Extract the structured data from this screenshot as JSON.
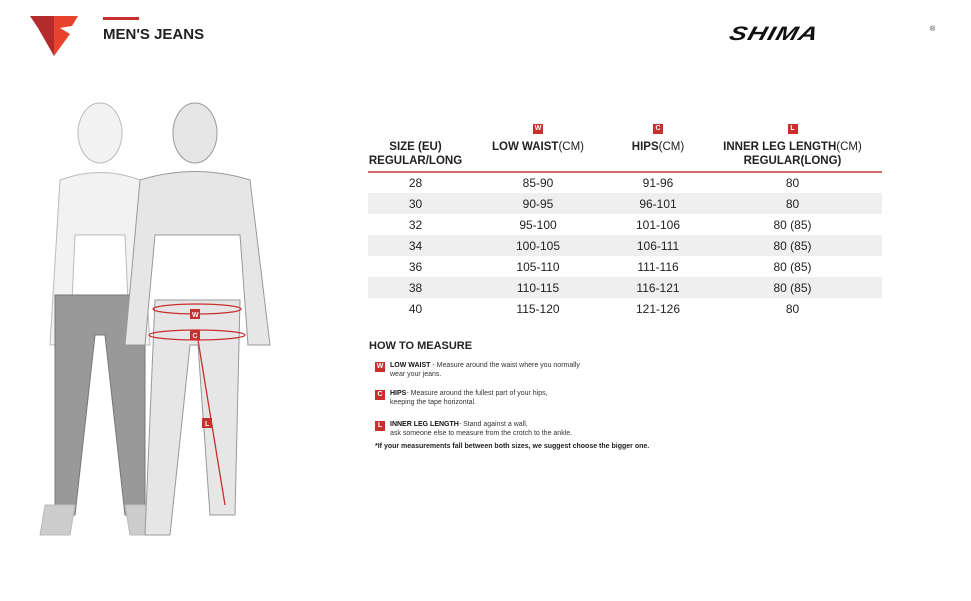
{
  "header": {
    "title": "MEN'S JEANS",
    "brand": "SHIMA",
    "registered": "®",
    "accent": "#c8302e"
  },
  "table": {
    "headers": [
      {
        "badge": "",
        "label": "SIZE (EU)",
        "label2": "REGULAR/LONG",
        "unit": ""
      },
      {
        "badge": "W",
        "label": "LOW WAIST",
        "unit": "(CM)",
        "label2": ""
      },
      {
        "badge": "C",
        "label": "HIPS",
        "unit": "(CM)",
        "label2": ""
      },
      {
        "badge": "L",
        "label": "INNER LEG LENGTH",
        "unit": "(CM)",
        "label2": "REGULAR(LONG)"
      }
    ],
    "rows": [
      [
        "28",
        "85-90",
        "91-96",
        "80"
      ],
      [
        "30",
        "90-95",
        "96-101",
        "80"
      ],
      [
        "32",
        "95-100",
        "101-106",
        "80 (85)"
      ],
      [
        "34",
        "100-105",
        "106-111",
        "80 (85)"
      ],
      [
        "36",
        "105-110",
        "111-116",
        "80 (85)"
      ],
      [
        "38",
        "110-115",
        "116-121",
        "80 (85)"
      ],
      [
        "40",
        "115-120",
        "121-126",
        "80"
      ]
    ]
  },
  "how_to": {
    "title": "HOW TO MEASURE",
    "items": [
      {
        "badge": "W",
        "name": "LOW WAIST",
        "text": " - Measure around the waist where you normally",
        "text2": "wear your jeans."
      },
      {
        "badge": "C",
        "name": "HIPS",
        "text": "- Measure around the fullest part of your hips,",
        "text2": "keeping the tape horizontal."
      },
      {
        "badge": "L",
        "name": "INNER LEG LENGTH",
        "text": "- Stand against a wall,",
        "text2": "ask someone else to measure from the crotch to the ankle."
      }
    ],
    "note": "*If your measurements fall between both sizes, we suggest choose the bigger one."
  },
  "figure": {
    "labels": [
      "W",
      "C",
      "L"
    ]
  }
}
